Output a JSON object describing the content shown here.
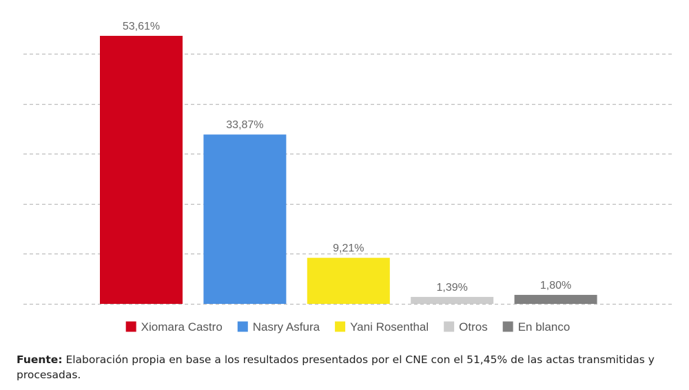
{
  "chart_data": {
    "type": "bar",
    "categories": [
      "Xiomara Castro",
      "Nasry Asfura",
      "Yani Rosenthal",
      "Otros",
      "En blanco"
    ],
    "values": [
      53.61,
      33.87,
      9.21,
      1.39,
      1.8
    ],
    "value_labels": [
      "53,61%",
      "33,87%",
      "9,21%",
      "1,39%",
      "1,80%"
    ],
    "colors": [
      "#d0021b",
      "#4a90e2",
      "#f8e71c",
      "#cccccc",
      "#808080"
    ],
    "ylim": [
      0,
      53.61
    ],
    "gridlines": [
      0,
      10,
      20,
      30,
      40,
      50
    ],
    "grid": true,
    "legend_position": "bottom",
    "title": "",
    "xlabel": "",
    "ylabel": ""
  },
  "footnote": {
    "lead": "Fuente:",
    "text": " Elaboración propia en base a los resultados presentados por el CNE con el 51,45% de las actas transmitidas y procesadas."
  }
}
